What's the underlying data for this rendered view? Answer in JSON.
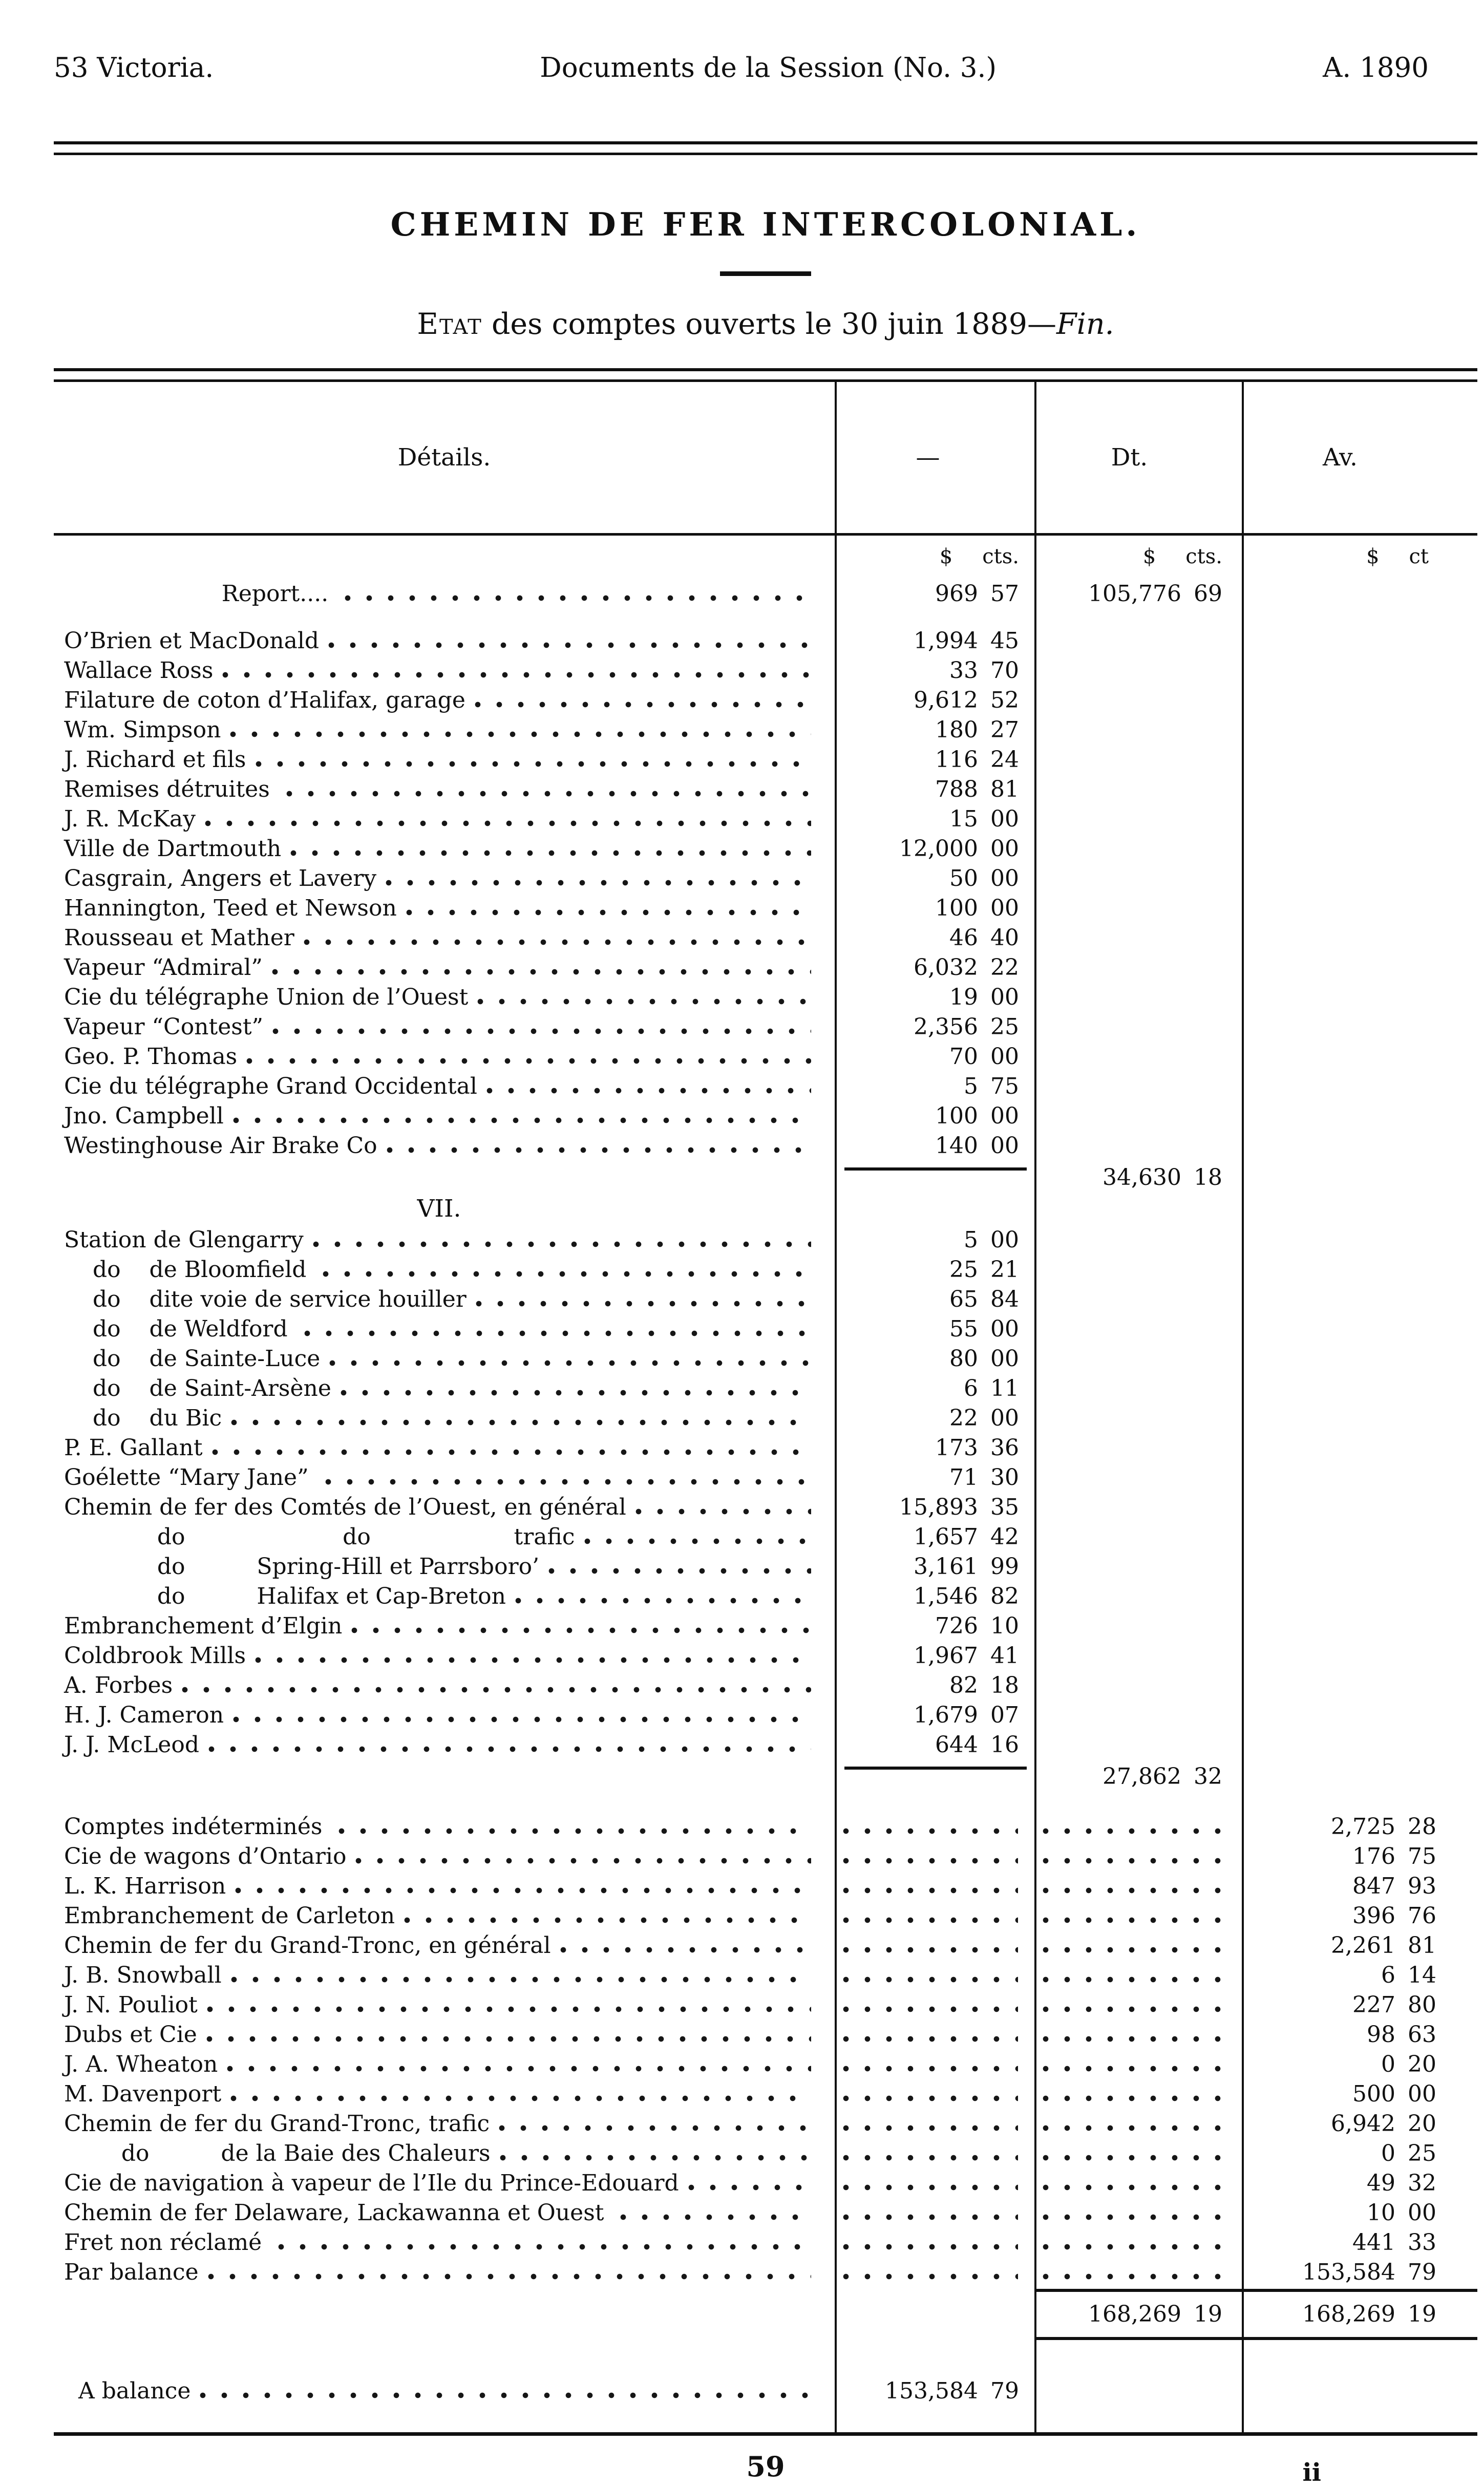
{
  "page_header": {
    "left": "53 Victoria.",
    "center": "Documents de la Session (No. 3.)",
    "right": "A. 1890"
  },
  "title": "CHEMIN DE FER INTERCOLONIAL.",
  "subtitle": {
    "lead": "Etat",
    "body": " des comptes ouverts le 30 juin 1889—",
    "fin": "Fin."
  },
  "table": {
    "columns": [
      "Détails.",
      "—",
      "Dt.",
      "Av."
    ],
    "units": {
      "c1_d": "$",
      "c1_c": "cts.",
      "dt_d": "$",
      "dt_c": "cts.",
      "av_d": "$",
      "av_c": "ct"
    },
    "rows": [
      {
        "t": "report",
        "l": "                      Report.... ",
        "c1": "969 57",
        "dt": "105,776 69"
      },
      {
        "t": "gap1"
      },
      {
        "l": "O’Brien et MacDonald",
        "c1": "1,994 45"
      },
      {
        "l": "Wallace Ross",
        "c1": "33 70"
      },
      {
        "l": "Filature de coton d’Halifax, garage",
        "c1": "9,612 52"
      },
      {
        "l": "Wm. Simpson",
        "c1": "180 27"
      },
      {
        "l": "J. Richard et fils",
        "c1": "116 24"
      },
      {
        "l": "Remises détruites ",
        "c1": "788 81"
      },
      {
        "l": "J. R. McKay",
        "c1": "15 00"
      },
      {
        "l": "Ville de Dartmouth",
        "c1": "12,000 00"
      },
      {
        "l": "Casgrain, Angers et Lavery",
        "c1": "50 00"
      },
      {
        "l": "Hannington, Teed et Newson",
        "c1": "100 00"
      },
      {
        "l": "Rousseau et Mather",
        "c1": "46 40"
      },
      {
        "l": "Vapeur “Admiral”",
        "c1": "6,032 22"
      },
      {
        "l": "Cie du télégraphe Union de l’Ouest",
        "c1": "19 00"
      },
      {
        "l": "Vapeur “Contest”",
        "c1": "2,356 25"
      },
      {
        "l": "Geo. P. Thomas",
        "c1": "70 00"
      },
      {
        "l": "Cie du télégraphe Grand Occidental",
        "c1": "5 75"
      },
      {
        "l": "Jno. Campbell",
        "c1": "100 00"
      },
      {
        "l": "Westinghouse Air Brake Co",
        "c1": "140 00"
      },
      {
        "t": "subtotal",
        "dt": "34,630 18"
      },
      {
        "t": "section",
        "l": "VII."
      },
      {
        "l": "Station de Glengarry",
        "c1": "5 00"
      },
      {
        "l": "    do    de Bloomfield ",
        "c1": "25 21"
      },
      {
        "l": "    do    dite voie de service houiller",
        "c1": "65 84"
      },
      {
        "l": "    do    de Weldford ",
        "c1": "55 00"
      },
      {
        "l": "    do    de Sainte-Luce",
        "c1": "80 00"
      },
      {
        "l": "    do    de Saint-Arsène",
        "c1": "6 11"
      },
      {
        "l": "    do    du Bic",
        "c1": "22 00"
      },
      {
        "l": "P. E. Gallant",
        "c1": "173 36"
      },
      {
        "l": "Goélette “Mary Jane” ",
        "c1": "71 30"
      },
      {
        "l": "Chemin de fer des Comtés de l’Ouest, en général",
        "c1": "15,893 35"
      },
      {
        "l": "             do                      do                    trafic",
        "c1": "1,657 42"
      },
      {
        "l": "             do          Spring-Hill et Parrsboro’",
        "c1": "3,161 99"
      },
      {
        "l": "             do          Halifax et Cap-Breton",
        "c1": "1,546 82"
      },
      {
        "l": "Embranchement d’Elgin",
        "c1": "726 10"
      },
      {
        "l": "Coldbrook Mills",
        "c1": "1,967 41"
      },
      {
        "l": "A. Forbes",
        "c1": "82 18"
      },
      {
        "l": "H. J. Cameron",
        "c1": "1,679 07"
      },
      {
        "l": "J. J. McLeod",
        "c1": "644 16"
      },
      {
        "t": "subtotal",
        "dt": "27,862 32"
      },
      {
        "t": "gap2"
      },
      {
        "l": "Comptes indéterminés ",
        "av": "2,725 28"
      },
      {
        "l": "Cie de wagons d’Ontario",
        "av": "176 75"
      },
      {
        "l": "L. K. Harrison",
        "av": "847 93"
      },
      {
        "l": "Embranchement de Carleton",
        "av": "396 76"
      },
      {
        "l": "Chemin de fer du Grand-Tronc, en général",
        "av": "2,261 81"
      },
      {
        "l": "J. B. Snowball",
        "av": "6 14"
      },
      {
        "l": "J. N. Pouliot",
        "av": "227 80"
      },
      {
        "l": "Dubs et Cie",
        "av": "98 63"
      },
      {
        "l": "J. A. Wheaton",
        "av": "0 20"
      },
      {
        "l": "M. Davenport",
        "av": "500 00"
      },
      {
        "l": "Chemin de fer du Grand-Tronc, trafic",
        "av": "6,942 20"
      },
      {
        "l": "        do          de la Baie des Chaleurs",
        "av": "0 25"
      },
      {
        "l": "Cie de navigation à vapeur de l’Ile du Prince-Edouard",
        "av": "49 32"
      },
      {
        "l": "Chemin de fer Delaware, Lackawanna et Ouest ",
        "av": "10 00"
      },
      {
        "l": "Fret non réclamé ",
        "av": "441 33"
      },
      {
        "l": "Par balance",
        "av": "153,584 79"
      },
      {
        "t": "totals",
        "dt": "168,269 19",
        "av": "168,269 19"
      },
      {
        "t": "gap3"
      },
      {
        "t": "balance",
        "l": "  A balance",
        "c1": "153,584 79"
      },
      {
        "t": "gap4"
      }
    ]
  },
  "footer": {
    "page_number": "59",
    "folio": "ii"
  }
}
